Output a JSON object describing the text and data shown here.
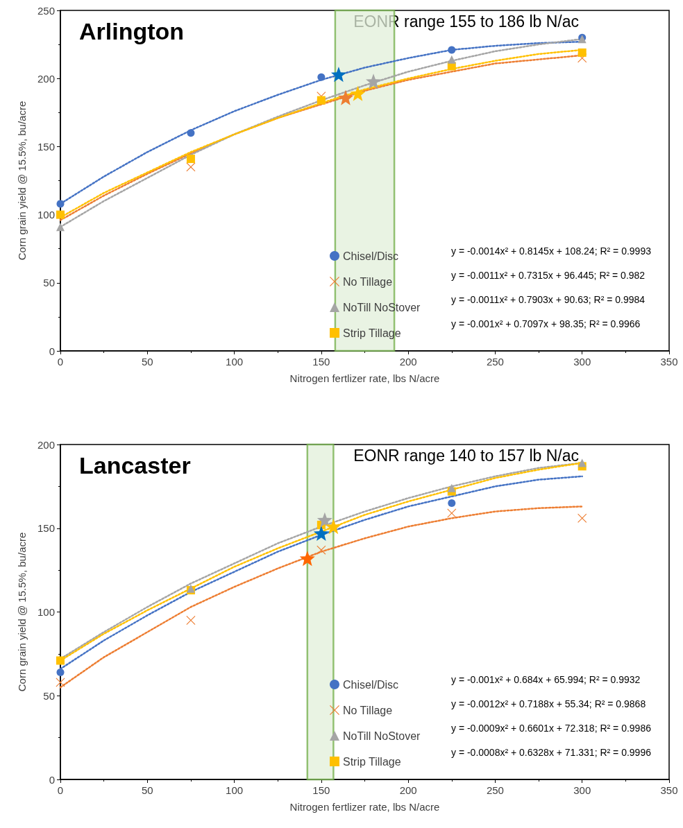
{
  "chart_data": [
    {
      "type": "scatter",
      "title": "Arlington",
      "xlabel": "Nitrogen fertlizer rate, lbs N/acre",
      "ylabel": "Corn grain yield @ 15.5%, bu/acre",
      "xlim": [
        0,
        350
      ],
      "xticks": [
        0,
        50,
        100,
        150,
        200,
        250,
        300,
        350
      ],
      "ylim": [
        0,
        250
      ],
      "yticks": [
        0,
        50,
        100,
        150,
        200,
        250
      ],
      "grid": false,
      "legend": "bottom right",
      "bands": [
        {
          "axis": "x",
          "from": 158,
          "to": 192,
          "color": "#e2efda"
        }
      ],
      "annotations": [
        "EONR range 155 to 186 lb N/ac",
        "y = -0.0014x² + 0.8145x + 108.24; R² = 0.9993",
        "y = -0.0011x² + 0.7315x + 96.445; R² = 0.982",
        "y = -0.0011x² + 0.7903x + 90.63; R² = 0.9984",
        "y = -0.001x² + 0.7097x + 98.35; R² = 0.9966"
      ],
      "series": [
        {
          "name": "Chisel/Disc",
          "type": "scatter",
          "marker": "circle",
          "color": "#4472c4",
          "x": [
            0,
            75,
            150,
            225,
            300
          ],
          "values": [
            108,
            160,
            201,
            221,
            230
          ]
        },
        {
          "name": "No Tillage",
          "type": "scatter",
          "marker": "cross",
          "color": "#ed7d31",
          "x": [
            75,
            150,
            300
          ],
          "values": [
            135,
            187,
            215
          ]
        },
        {
          "name": "NoTill NoStover",
          "type": "scatter",
          "marker": "triangle",
          "color": "#a5a5a5",
          "x": [
            0,
            225,
            300
          ],
          "values": [
            91,
            214,
            229
          ]
        },
        {
          "name": "Strip Tillage",
          "type": "scatter",
          "marker": "square",
          "color": "#ffc000",
          "x": [
            0,
            75,
            150,
            225,
            300
          ],
          "values": [
            100,
            141,
            184,
            209,
            219
          ]
        },
        {
          "type": "line",
          "marker": "none",
          "line_style": "dotted",
          "color": "#4472c4",
          "x": [
            0,
            25,
            50,
            75,
            100,
            125,
            150,
            175,
            200,
            225,
            250,
            275,
            300
          ],
          "values": [
            108,
            128,
            146,
            162,
            176,
            188,
            199,
            208,
            215,
            221,
            224,
            226,
            227
          ]
        },
        {
          "type": "line",
          "marker": "none",
          "line_style": "dotted",
          "color": "#ed7d31",
          "x": [
            0,
            25,
            50,
            75,
            100,
            125,
            150,
            175,
            200,
            225,
            250,
            275,
            300
          ],
          "values": [
            96,
            114,
            130,
            145,
            159,
            171,
            181,
            191,
            199,
            205,
            211,
            214,
            217
          ]
        },
        {
          "type": "line",
          "marker": "none",
          "line_style": "dotted",
          "color": "#a5a5a5",
          "x": [
            0,
            25,
            50,
            75,
            100,
            125,
            150,
            175,
            200,
            225,
            250,
            275,
            300
          ],
          "values": [
            91,
            110,
            127,
            144,
            159,
            172,
            184,
            195,
            205,
            213,
            220,
            225,
            229
          ]
        },
        {
          "type": "line",
          "marker": "none",
          "line_style": "dotted",
          "color": "#ffc000",
          "x": [
            0,
            25,
            50,
            75,
            100,
            125,
            150,
            175,
            200,
            225,
            250,
            275,
            300
          ],
          "values": [
            98,
            116,
            131,
            146,
            159,
            171,
            182,
            192,
            200,
            207,
            213,
            218,
            221
          ]
        },
        {
          "type": "scatter",
          "marker": "star",
          "color": "#0070c0",
          "x": [
            160
          ],
          "values": [
            203
          ]
        },
        {
          "type": "scatter",
          "marker": "star",
          "color": "#ed7d31",
          "x": [
            164
          ],
          "values": [
            186
          ]
        },
        {
          "type": "scatter",
          "marker": "star",
          "color": "#ffc000",
          "x": [
            171
          ],
          "values": [
            189
          ]
        },
        {
          "type": "scatter",
          "marker": "star",
          "color": "#a5a5a5",
          "x": [
            180
          ],
          "values": [
            198
          ]
        }
      ]
    },
    {
      "type": "scatter",
      "title": "Lancaster",
      "xlabel": "Nitrogen fertlizer rate, lbs N/acre",
      "ylabel": "Corn grain yield @ 15.5%, bu/acre",
      "xlim": [
        0,
        350
      ],
      "xticks": [
        0,
        50,
        100,
        150,
        200,
        250,
        300,
        350
      ],
      "ylim": [
        0,
        200
      ],
      "yticks": [
        0,
        50,
        100,
        150,
        200
      ],
      "grid": false,
      "legend": "bottom right",
      "bands": [
        {
          "axis": "x",
          "from": 142,
          "to": 157,
          "color": "#e2efda"
        }
      ],
      "annotations": [
        "EONR range 140 to 157 lb N/ac",
        "y = -0.001x² + 0.684x + 65.994; R² = 0.9932",
        "y = -0.0012x² + 0.7188x + 55.34; R² = 0.9868",
        "y = -0.0009x² + 0.6601x + 72.318; R² = 0.9986",
        "y = -0.0008x² + 0.6328x + 71.331; R² = 0.9996"
      ],
      "series": [
        {
          "name": "Chisel/Disc",
          "type": "scatter",
          "marker": "circle",
          "color": "#4472c4",
          "x": [
            0,
            225
          ],
          "values": [
            64,
            165
          ]
        },
        {
          "name": "No Tillage",
          "type": "scatter",
          "marker": "cross",
          "color": "#ed7d31",
          "x": [
            0,
            75,
            150,
            225,
            300
          ],
          "values": [
            58,
            95,
            137,
            159,
            156
          ]
        },
        {
          "name": "NoTill NoStover",
          "type": "scatter",
          "marker": "triangle",
          "color": "#a5a5a5",
          "x": [
            75,
            225,
            300
          ],
          "values": [
            114,
            174,
            189
          ]
        },
        {
          "name": "Strip Tillage",
          "type": "scatter",
          "marker": "square",
          "color": "#ffc000",
          "x": [
            0,
            75,
            150,
            225,
            300
          ],
          "values": [
            71,
            113,
            152,
            172,
            187
          ]
        },
        {
          "type": "line",
          "marker": "none",
          "line_style": "dotted",
          "color": "#4472c4",
          "x": [
            0,
            25,
            50,
            75,
            100,
            125,
            150,
            175,
            200,
            225,
            250,
            275,
            300
          ],
          "values": [
            66,
            83,
            98,
            112,
            124,
            136,
            146,
            155,
            163,
            169,
            175,
            179,
            181
          ]
        },
        {
          "type": "line",
          "marker": "none",
          "line_style": "dotted",
          "color": "#ed7d31",
          "x": [
            0,
            25,
            50,
            75,
            100,
            125,
            150,
            175,
            200,
            225,
            250,
            275,
            300
          ],
          "values": [
            55,
            73,
            88,
            103,
            115,
            126,
            136,
            144,
            151,
            156,
            160,
            162,
            163
          ]
        },
        {
          "type": "line",
          "marker": "none",
          "line_style": "dotted",
          "color": "#a5a5a5",
          "x": [
            0,
            25,
            50,
            75,
            100,
            125,
            150,
            175,
            200,
            225,
            250,
            275,
            300
          ],
          "values": [
            72,
            88,
            103,
            117,
            129,
            141,
            151,
            160,
            168,
            175,
            181,
            186,
            189
          ]
        },
        {
          "type": "line",
          "marker": "none",
          "line_style": "dotted",
          "color": "#ffc000",
          "x": [
            0,
            25,
            50,
            75,
            100,
            125,
            150,
            175,
            200,
            225,
            250,
            275,
            300
          ],
          "values": [
            71,
            87,
            101,
            114,
            127,
            138,
            148,
            158,
            166,
            173,
            180,
            185,
            189
          ]
        },
        {
          "type": "scatter",
          "marker": "star",
          "color": "#ff6600",
          "x": [
            142
          ],
          "values": [
            132
          ]
        },
        {
          "type": "scatter",
          "marker": "star",
          "color": "#0070c0",
          "x": [
            150
          ],
          "values": [
            147
          ]
        },
        {
          "type": "scatter",
          "marker": "star",
          "color": "#a5a5a5",
          "x": [
            152
          ],
          "values": [
            155
          ]
        },
        {
          "type": "scatter",
          "marker": "star",
          "color": "#ffc000",
          "x": [
            157
          ],
          "values": [
            151
          ]
        }
      ]
    }
  ]
}
